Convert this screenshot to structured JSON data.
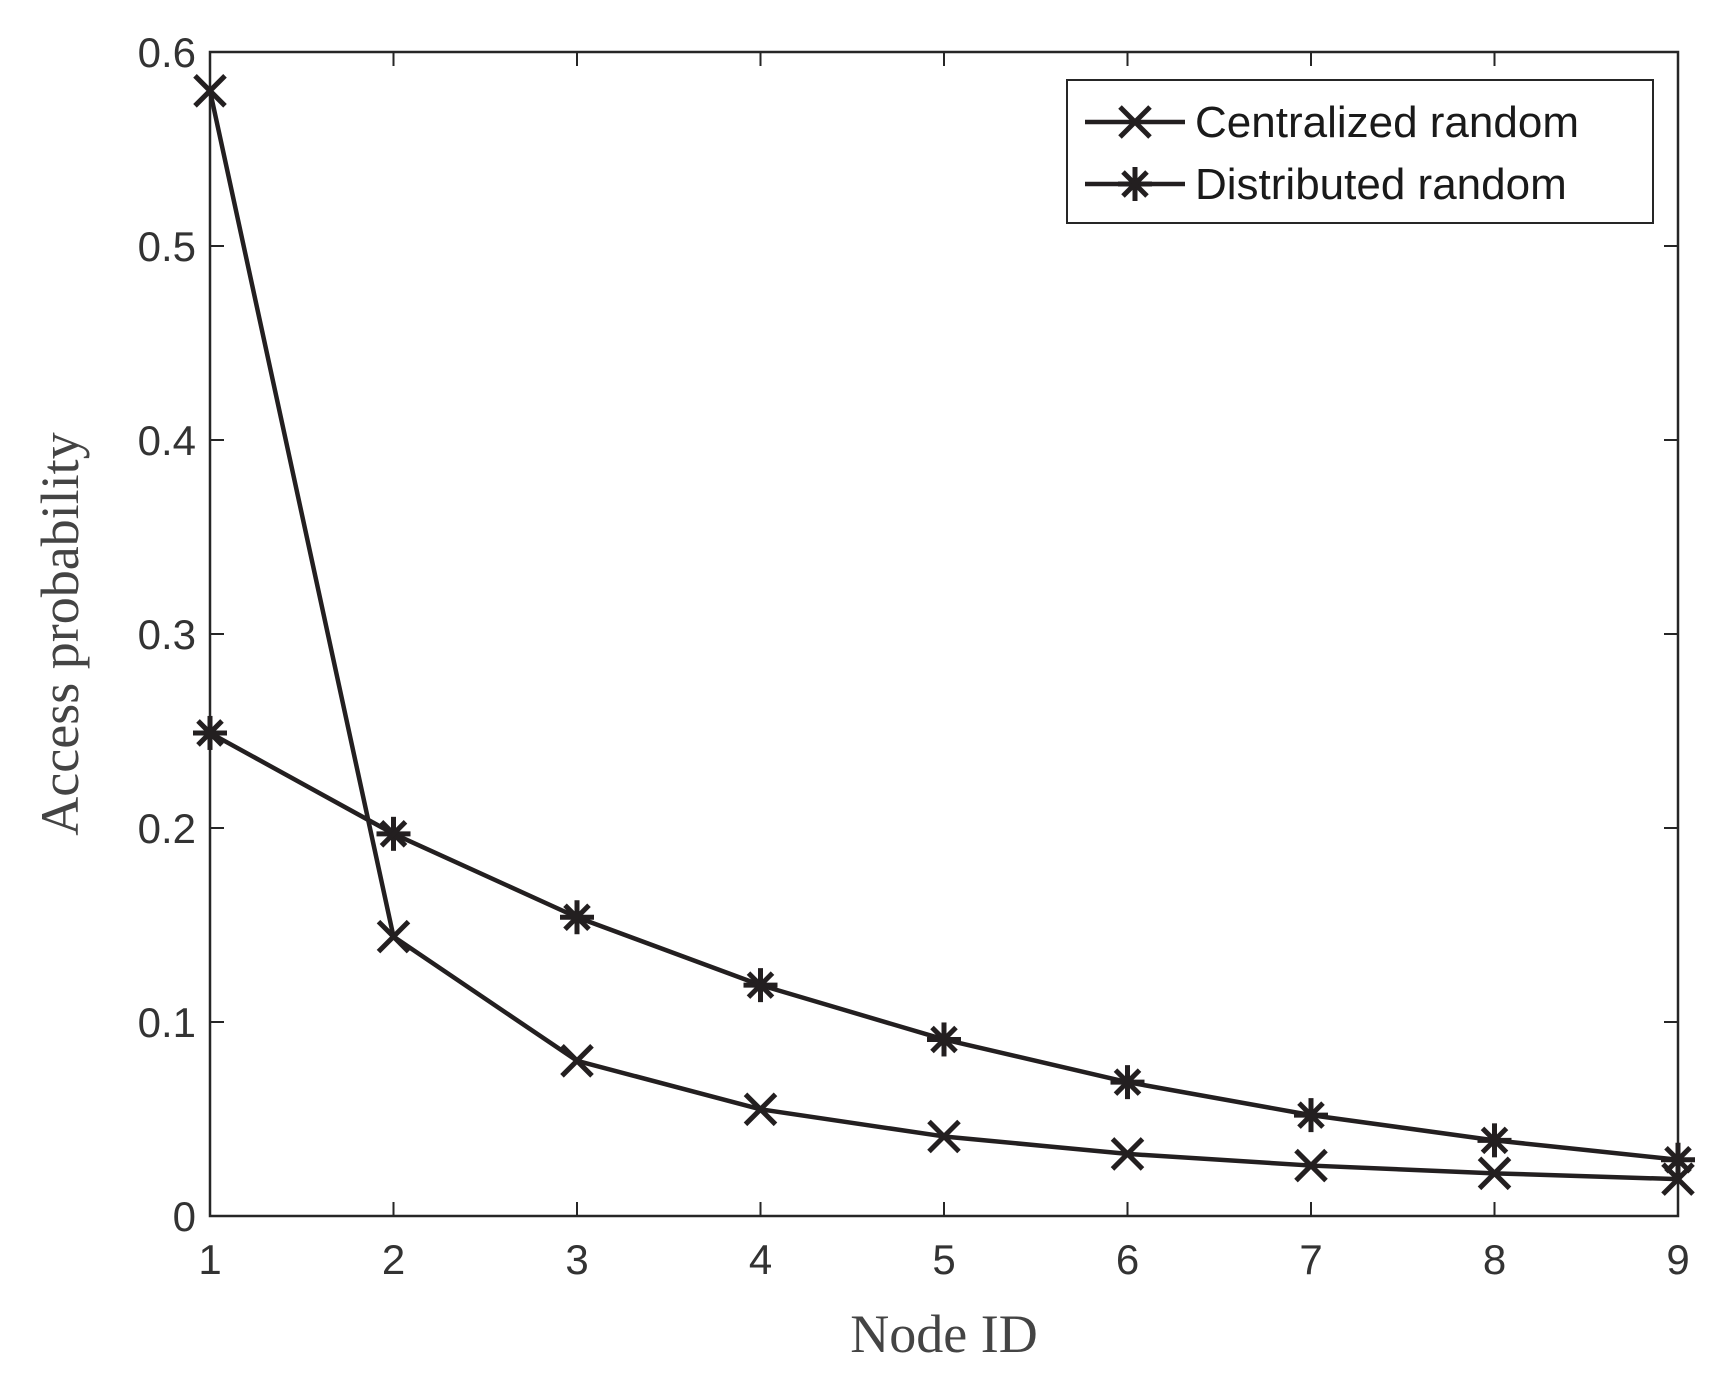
{
  "chart_data": {
    "type": "line",
    "title": "",
    "xlabel": "Node ID",
    "ylabel": "Access probability",
    "x": [
      1,
      2,
      3,
      4,
      5,
      6,
      7,
      8,
      9
    ],
    "xlim": [
      1,
      9
    ],
    "ylim": [
      0,
      0.6
    ],
    "xticks": [
      "1",
      "2",
      "3",
      "4",
      "5",
      "6",
      "7",
      "8",
      "9"
    ],
    "yticks": [
      "0",
      "0.1",
      "0.2",
      "0.3",
      "0.4",
      "0.5",
      "0.6"
    ],
    "grid": false,
    "legend_position": "top-right",
    "series": [
      {
        "name": "Centralized random",
        "marker": "x",
        "color": "#231f20",
        "values": [
          0.58,
          0.144,
          0.08,
          0.055,
          0.041,
          0.032,
          0.026,
          0.022,
          0.019
        ]
      },
      {
        "name": "Distributed random",
        "marker": "asterisk",
        "color": "#231f20",
        "values": [
          0.249,
          0.197,
          0.154,
          0.119,
          0.091,
          0.069,
          0.052,
          0.039,
          0.029
        ]
      }
    ]
  }
}
